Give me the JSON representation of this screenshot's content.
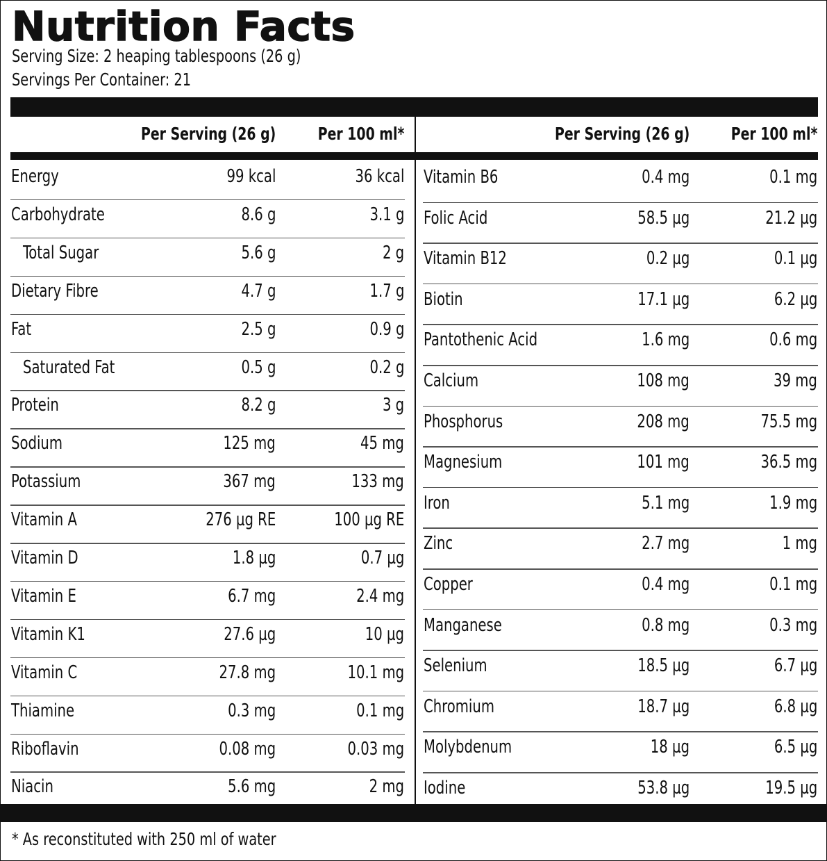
{
  "title": "Nutrition Facts",
  "serving_size": "Serving Size: 2 heaping tablespoons (26 g)",
  "servings_per_container": "Servings Per Container: 21",
  "headers": {
    "per_serving": "Per Serving (26 g)",
    "per_100ml": "Per 100 ml*"
  },
  "left_rows": [
    {
      "name": "Energy",
      "serving": "99 kcal",
      "per100": "36 kcal",
      "indent": false
    },
    {
      "name": "Carbohydrate",
      "serving": "8.6 g",
      "per100": "3.1 g",
      "indent": false
    },
    {
      "name": "Total Sugar",
      "serving": "5.6 g",
      "per100": "2 g",
      "indent": true
    },
    {
      "name": "Dietary Fibre",
      "serving": "4.7 g",
      "per100": "1.7 g",
      "indent": false
    },
    {
      "name": "Fat",
      "serving": "2.5 g",
      "per100": "0.9 g",
      "indent": false
    },
    {
      "name": "Saturated Fat",
      "serving": "0.5 g",
      "per100": "0.2 g",
      "indent": true
    },
    {
      "name": "Protein",
      "serving": "8.2 g",
      "per100": "3 g",
      "indent": false
    },
    {
      "name": "Sodium",
      "serving": "125 mg",
      "per100": "45 mg",
      "indent": false
    },
    {
      "name": "Potassium",
      "serving": "367 mg",
      "per100": "133 mg",
      "indent": false
    },
    {
      "name": "Vitamin A",
      "serving": "276 µg RE",
      "per100": "100 µg RE",
      "indent": false
    },
    {
      "name": "Vitamin D",
      "serving": "1.8 µg",
      "per100": "0.7 µg",
      "indent": false
    },
    {
      "name": "Vitamin E",
      "serving": "6.7 mg",
      "per100": "2.4 mg",
      "indent": false
    },
    {
      "name": "Vitamin K1",
      "serving": "27.6 µg",
      "per100": "10 µg",
      "indent": false
    },
    {
      "name": "Vitamin C",
      "serving": "27.8 mg",
      "per100": "10.1 mg",
      "indent": false
    },
    {
      "name": "Thiamine",
      "serving": "0.3 mg",
      "per100": "0.1 mg",
      "indent": false
    },
    {
      "name": "Riboflavin",
      "serving": "0.08 mg",
      "per100": "0.03 mg",
      "indent": false
    },
    {
      "name": "Niacin",
      "serving": "5.6 mg",
      "per100": "2 mg",
      "indent": false
    }
  ],
  "right_rows": [
    {
      "name": "Vitamin B6",
      "serving": "0.4 mg",
      "per100": "0.1 mg"
    },
    {
      "name": "Folic Acid",
      "serving": "58.5 µg",
      "per100": "21.2 µg"
    },
    {
      "name": "Vitamin B12",
      "serving": "0.2 µg",
      "per100": "0.1 µg"
    },
    {
      "name": "Biotin",
      "serving": "17.1 µg",
      "per100": "6.2 µg"
    },
    {
      "name": "Pantothenic Acid",
      "serving": "1.6 mg",
      "per100": "0.6 mg"
    },
    {
      "name": "Calcium",
      "serving": "108 mg",
      "per100": "39 mg"
    },
    {
      "name": "Phosphorus",
      "serving": "208 mg",
      "per100": "75.5 mg"
    },
    {
      "name": "Magnesium",
      "serving": "101 mg",
      "per100": "36.5 mg"
    },
    {
      "name": "Iron",
      "serving": "5.1 mg",
      "per100": "1.9 mg"
    },
    {
      "name": "Zinc",
      "serving": "2.7 mg",
      "per100": "1 mg"
    },
    {
      "name": "Copper",
      "serving": "0.4 mg",
      "per100": "0.1 mg"
    },
    {
      "name": "Manganese",
      "serving": "0.8 mg",
      "per100": "0.3 mg"
    },
    {
      "name": "Selenium",
      "serving": "18.5 µg",
      "per100": "6.7 µg"
    },
    {
      "name": "Chromium",
      "serving": "18.7 µg",
      "per100": "6.8 µg"
    },
    {
      "name": "Molybdenum",
      "serving": "18 µg",
      "per100": "6.5 µg"
    },
    {
      "name": "Iodine",
      "serving": "53.8 µg",
      "per100": "19.5 µg"
    }
  ],
  "footnote": "* As reconstituted with 250 ml of water"
}
